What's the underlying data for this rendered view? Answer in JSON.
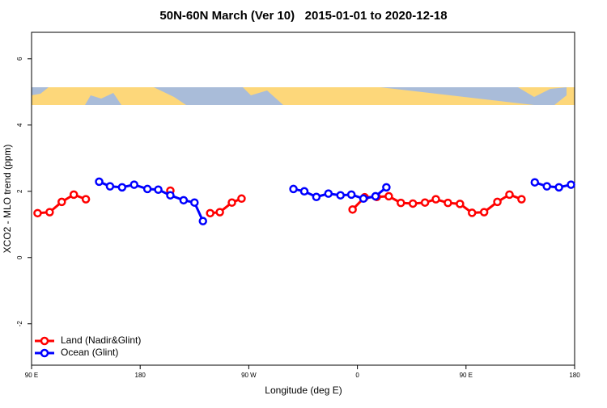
{
  "chart_data": {
    "type": "line",
    "title": "50N-60N March (Ver 10)   2015-01-01 to 2020-12-18",
    "x_label": "Longitude (deg E)",
    "y_label": "XCO2 - MLO trend (ppm)",
    "xlim": [
      90,
      540
    ],
    "ylim": [
      -3.25,
      6.8
    ],
    "xticks": [
      {
        "value": 90,
        "label": "90 E"
      },
      180,
      {
        "value": 270,
        "label": "90 W"
      },
      {
        "value": 360,
        "label": "0"
      },
      {
        "value": 450,
        "label": "90 E"
      },
      {
        "value": 540,
        "label": "180"
      }
    ],
    "yticks": [
      -2,
      0,
      2,
      4,
      6
    ],
    "legend": "bottom-left",
    "series": [
      {
        "name": "Land (Nadir&Glint)",
        "color": "#ff0000",
        "x": [
          95,
          105,
          115,
          125,
          135,
          null,
          205,
          null,
          238,
          246,
          256,
          264,
          null,
          356,
          366,
          376,
          386,
          396,
          406,
          416,
          425,
          435,
          445,
          455,
          465,
          476,
          486,
          496
        ],
        "values": [
          1.34,
          1.37,
          1.68,
          1.9,
          1.76,
          null,
          2.02,
          null,
          1.34,
          1.37,
          1.66,
          1.78,
          null,
          1.45,
          1.82,
          1.83,
          1.85,
          1.65,
          1.63,
          1.66,
          1.76,
          1.65,
          1.62,
          1.35,
          1.37,
          1.68,
          1.9,
          1.76
        ]
      },
      {
        "name": "Ocean (Glint)",
        "color": "#0000ff",
        "x": [
          146,
          155,
          165,
          175,
          186,
          195,
          205,
          216,
          225,
          232,
          null,
          307,
          316,
          326,
          336,
          346,
          355,
          365,
          375,
          384,
          null,
          507,
          517,
          527,
          537
        ],
        "values": [
          2.29,
          2.15,
          2.12,
          2.2,
          2.07,
          2.05,
          1.88,
          1.73,
          1.66,
          1.1,
          null,
          2.07,
          2.0,
          1.83,
          1.93,
          1.88,
          1.9,
          1.78,
          1.85,
          2.12,
          null,
          2.27,
          2.15,
          2.12,
          2.2
        ]
      }
    ]
  }
}
